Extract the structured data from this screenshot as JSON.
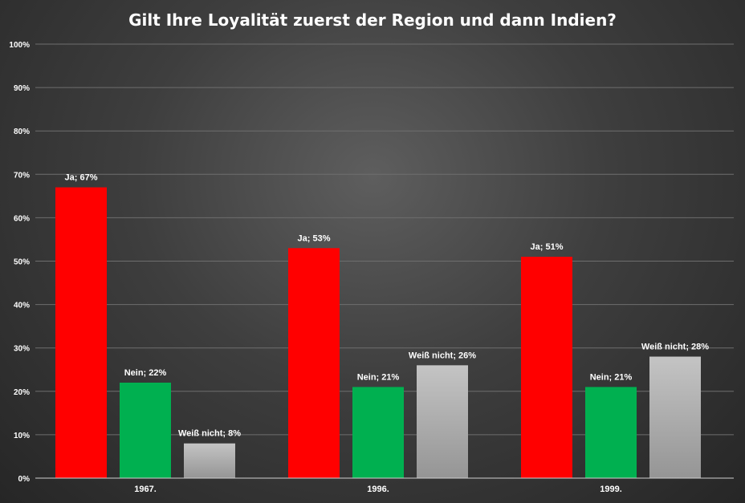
{
  "chart_data": {
    "type": "bar",
    "title": "Gilt Ihre Loyalität zuerst der Region und dann Indien?",
    "categories": [
      "1967.",
      "1996.",
      "1999."
    ],
    "series": [
      {
        "name": "Ja",
        "values": [
          67,
          53,
          51
        ],
        "color": "#ff0000"
      },
      {
        "name": "Nein",
        "values": [
          22,
          21,
          21
        ],
        "color": "#00b050"
      },
      {
        "name": "Weiß nicht",
        "values": [
          8,
          26,
          28
        ],
        "color": "#a6a6a6"
      }
    ],
    "data_labels": [
      [
        "Ja; 67%",
        "Ja; 53%",
        "Ja; 51%"
      ],
      [
        "Nein; 22%",
        "Nein; 21%",
        "Nein; 21%"
      ],
      [
        "Weiß nicht; 8%",
        "Weiß nicht; 26%",
        "Weiß nicht; 28%"
      ]
    ],
    "y_ticks": [
      "0%",
      "10%",
      "20%",
      "30%",
      "40%",
      "50%",
      "60%",
      "70%",
      "80%",
      "90%",
      "100%"
    ],
    "ylim": [
      0,
      100
    ],
    "grid": true,
    "legend": "none"
  }
}
